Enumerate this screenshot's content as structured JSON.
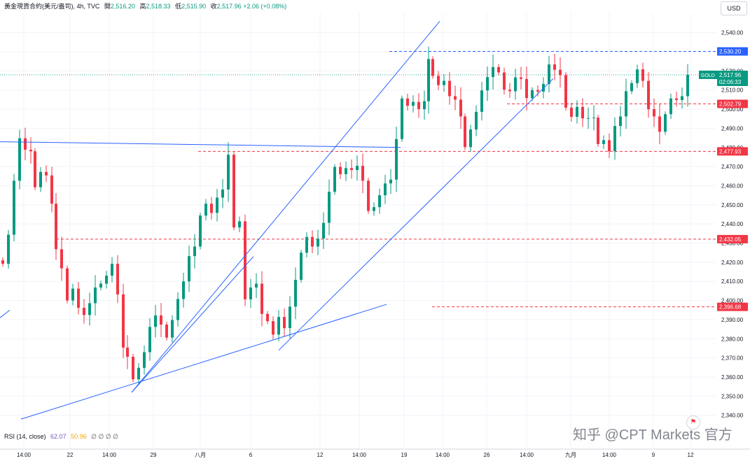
{
  "header": {
    "symbol": "黃金現貨合約(美元/盎司)",
    "interval": "4h",
    "source": "TVC",
    "open_label": "開",
    "open": "2,516.20",
    "high_label": "高",
    "high": "2,518.33",
    "low_label": "低",
    "low": "2,515.90",
    "close_label": "收",
    "close": "2,517.96",
    "change": "+2.06 (+0.08%)"
  },
  "currency_button": "USD",
  "indicator": {
    "name": "RSI (14, close)",
    "value1": "62.07",
    "value2": "50.96",
    "placeholders": "∅ ∅ ∅ ∅"
  },
  "watermark": "知乎 @CPT Markets 官方",
  "colors": {
    "up": "#089981",
    "down": "#f23645",
    "trendline": "#2962ff",
    "resistance_level": "#2962ff",
    "support_levels": "#f23645",
    "current_price": "#089981"
  },
  "chart_data": {
    "type": "candlestick",
    "symbol": "GOLD",
    "ylim": [
      2335,
      2547
    ],
    "y_ticks": [
      2340,
      2350,
      2360,
      2370,
      2380,
      2390,
      2400,
      2410,
      2420,
      2430,
      2440,
      2450,
      2460,
      2470,
      2480,
      2490,
      2500,
      2510,
      2520,
      2530,
      2540
    ],
    "x_ticks": [
      "14:00",
      "22",
      "14:00",
      "29",
      "八月",
      "6",
      "12",
      "14:00",
      "19",
      "14:00",
      "26",
      "14:00",
      "九月",
      "14:00",
      "9",
      "12"
    ],
    "current_price": {
      "label": "GOLD",
      "price": "2,517.96",
      "countdown": "02:06:33"
    },
    "price_labels": [
      {
        "price": "2,530.20",
        "style": "blue-dashed"
      },
      {
        "price": "2,502.79",
        "style": "red-dashed"
      },
      {
        "price": "2,477.93",
        "style": "red-dashed"
      },
      {
        "price": "2,432.05",
        "style": "red-dashed"
      },
      {
        "price": "2,396.68",
        "style": "red-dashed"
      }
    ],
    "levels": [
      {
        "price": 2530.2,
        "color": "blue",
        "from_x": "19 (pre)",
        "to_x": "right edge"
      },
      {
        "price": 2502.79,
        "color": "red",
        "from_x": "26",
        "to_x": "right edge"
      },
      {
        "price": 2477.93,
        "color": "red",
        "from_x": "29 (post)",
        "to_x": "right edge"
      },
      {
        "price": 2432.05,
        "color": "red",
        "from_x": "22",
        "to_x": "right edge"
      },
      {
        "price": 2396.68,
        "color": "red",
        "from_x": "14:00 (19)",
        "to_x": "right edge"
      }
    ],
    "trendlines": [
      {
        "from": [
          0,
          2483
        ],
        "to": [
          572,
          2480
        ]
      },
      {
        "from": [
          188,
          2352
        ],
        "to": [
          362,
          2423
        ]
      },
      {
        "from": [
          188,
          2352
        ],
        "to": [
          628,
          2546
        ]
      },
      {
        "from": [
          30,
          2338
        ],
        "to": [
          552,
          2398
        ]
      },
      {
        "from": [
          398,
          2374
        ],
        "to": [
          790,
          2516
        ]
      },
      {
        "from": [
          0,
          2391
        ],
        "to": [
          14,
          2395
        ]
      }
    ],
    "anchors": [
      {
        "x": 4,
        "p": 2421
      },
      {
        "x": 12,
        "p": 2435
      },
      {
        "x": 20,
        "p": 2462
      },
      {
        "x": 28,
        "p": 2483
      },
      {
        "x": 36,
        "p": 2480
      },
      {
        "x": 44,
        "p": 2478
      },
      {
        "x": 50,
        "p": 2458
      },
      {
        "x": 58,
        "p": 2469
      },
      {
        "x": 66,
        "p": 2466
      },
      {
        "x": 74,
        "p": 2450
      },
      {
        "x": 80,
        "p": 2425
      },
      {
        "x": 88,
        "p": 2418
      },
      {
        "x": 96,
        "p": 2400
      },
      {
        "x": 104,
        "p": 2405
      },
      {
        "x": 112,
        "p": 2398
      },
      {
        "x": 120,
        "p": 2393
      },
      {
        "x": 128,
        "p": 2398
      },
      {
        "x": 136,
        "p": 2405
      },
      {
        "x": 144,
        "p": 2410
      },
      {
        "x": 152,
        "p": 2413
      },
      {
        "x": 160,
        "p": 2418
      },
      {
        "x": 168,
        "p": 2405
      },
      {
        "x": 176,
        "p": 2376
      },
      {
        "x": 182,
        "p": 2370
      },
      {
        "x": 190,
        "p": 2357
      },
      {
        "x": 198,
        "p": 2366
      },
      {
        "x": 206,
        "p": 2373
      },
      {
        "x": 214,
        "p": 2385
      },
      {
        "x": 222,
        "p": 2394
      },
      {
        "x": 230,
        "p": 2388
      },
      {
        "x": 238,
        "p": 2380
      },
      {
        "x": 246,
        "p": 2388
      },
      {
        "x": 254,
        "p": 2402
      },
      {
        "x": 262,
        "p": 2410
      },
      {
        "x": 270,
        "p": 2422
      },
      {
        "x": 278,
        "p": 2430
      },
      {
        "x": 286,
        "p": 2445
      },
      {
        "x": 294,
        "p": 2450
      },
      {
        "x": 302,
        "p": 2444
      },
      {
        "x": 310,
        "p": 2455
      },
      {
        "x": 318,
        "p": 2458
      },
      {
        "x": 326,
        "p": 2475
      },
      {
        "x": 334,
        "p": 2440
      },
      {
        "x": 342,
        "p": 2442
      },
      {
        "x": 350,
        "p": 2400
      },
      {
        "x": 358,
        "p": 2405
      },
      {
        "x": 366,
        "p": 2410
      },
      {
        "x": 374,
        "p": 2393
      },
      {
        "x": 382,
        "p": 2388
      },
      {
        "x": 390,
        "p": 2384
      },
      {
        "x": 398,
        "p": 2392
      },
      {
        "x": 406,
        "p": 2385
      },
      {
        "x": 414,
        "p": 2395
      },
      {
        "x": 422,
        "p": 2412
      },
      {
        "x": 430,
        "p": 2425
      },
      {
        "x": 438,
        "p": 2432
      },
      {
        "x": 446,
        "p": 2430
      },
      {
        "x": 454,
        "p": 2433
      },
      {
        "x": 462,
        "p": 2440
      },
      {
        "x": 470,
        "p": 2455
      },
      {
        "x": 478,
        "p": 2471
      },
      {
        "x": 486,
        "p": 2466
      },
      {
        "x": 494,
        "p": 2468
      },
      {
        "x": 502,
        "p": 2470
      },
      {
        "x": 510,
        "p": 2471
      },
      {
        "x": 518,
        "p": 2462
      },
      {
        "x": 526,
        "p": 2445
      },
      {
        "x": 534,
        "p": 2450
      },
      {
        "x": 542,
        "p": 2455
      },
      {
        "x": 550,
        "p": 2460
      },
      {
        "x": 558,
        "p": 2465
      },
      {
        "x": 566,
        "p": 2485
      },
      {
        "x": 574,
        "p": 2505
      },
      {
        "x": 582,
        "p": 2500
      },
      {
        "x": 590,
        "p": 2505
      },
      {
        "x": 598,
        "p": 2500
      },
      {
        "x": 606,
        "p": 2503
      },
      {
        "x": 612,
        "p": 2528
      },
      {
        "x": 618,
        "p": 2518
      },
      {
        "x": 626,
        "p": 2512
      },
      {
        "x": 634,
        "p": 2513
      },
      {
        "x": 642,
        "p": 2508
      },
      {
        "x": 650,
        "p": 2505
      },
      {
        "x": 658,
        "p": 2495
      },
      {
        "x": 664,
        "p": 2482
      },
      {
        "x": 672,
        "p": 2490
      },
      {
        "x": 680,
        "p": 2498
      },
      {
        "x": 688,
        "p": 2508
      },
      {
        "x": 696,
        "p": 2518
      },
      {
        "x": 704,
        "p": 2522
      },
      {
        "x": 712,
        "p": 2518
      },
      {
        "x": 720,
        "p": 2512
      },
      {
        "x": 728,
        "p": 2510
      },
      {
        "x": 736,
        "p": 2516
      },
      {
        "x": 744,
        "p": 2514
      },
      {
        "x": 752,
        "p": 2507
      },
      {
        "x": 760,
        "p": 2510
      },
      {
        "x": 768,
        "p": 2508
      },
      {
        "x": 776,
        "p": 2515
      },
      {
        "x": 784,
        "p": 2524
      },
      {
        "x": 792,
        "p": 2520
      },
      {
        "x": 800,
        "p": 2516
      },
      {
        "x": 808,
        "p": 2502
      },
      {
        "x": 816,
        "p": 2496
      },
      {
        "x": 824,
        "p": 2500
      },
      {
        "x": 832,
        "p": 2497
      },
      {
        "x": 840,
        "p": 2496
      },
      {
        "x": 848,
        "p": 2495
      },
      {
        "x": 854,
        "p": 2480
      },
      {
        "x": 862,
        "p": 2485
      },
      {
        "x": 870,
        "p": 2478
      },
      {
        "x": 878,
        "p": 2490
      },
      {
        "x": 886,
        "p": 2498
      },
      {
        "x": 894,
        "p": 2510
      },
      {
        "x": 902,
        "p": 2513
      },
      {
        "x": 910,
        "p": 2519
      },
      {
        "x": 918,
        "p": 2516
      },
      {
        "x": 926,
        "p": 2500
      },
      {
        "x": 934,
        "p": 2495
      },
      {
        "x": 942,
        "p": 2490
      },
      {
        "x": 950,
        "p": 2498
      },
      {
        "x": 958,
        "p": 2505
      },
      {
        "x": 966,
        "p": 2503
      },
      {
        "x": 974,
        "p": 2508
      },
      {
        "x": 982,
        "p": 2518
      }
    ]
  }
}
